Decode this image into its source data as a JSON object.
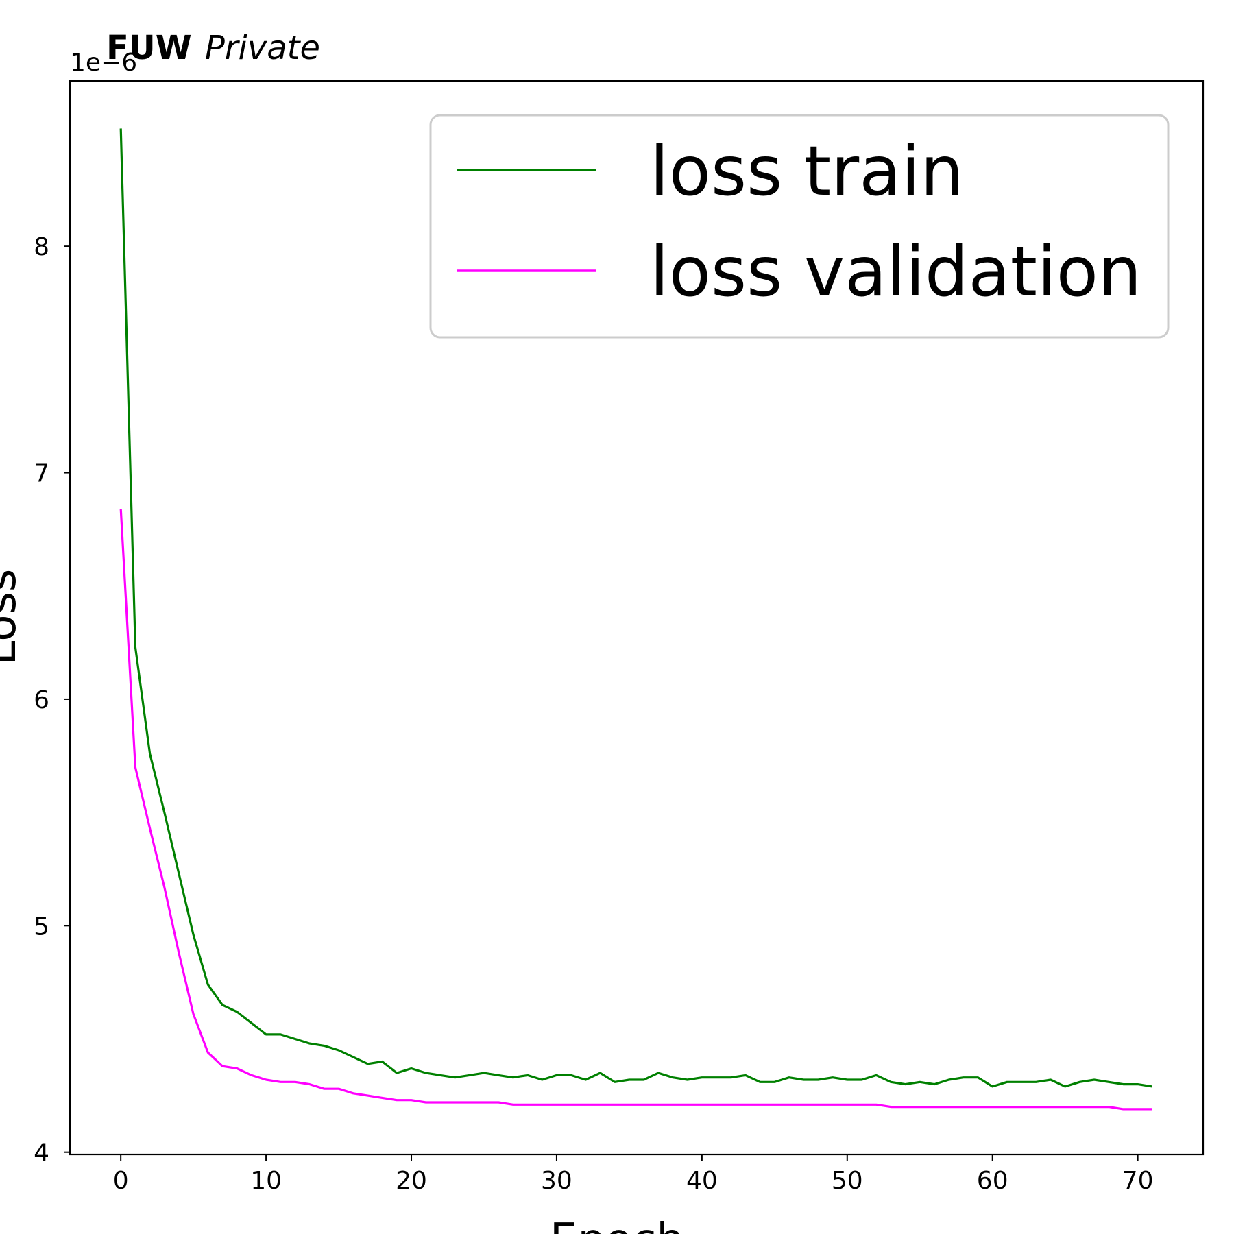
{
  "title": {
    "bold": "FUW",
    "italic": "Private"
  },
  "chart_data": {
    "type": "line",
    "xlabel": "Epoch",
    "ylabel": "Loss",
    "y_offset_text": "1e−6",
    "xlim": [
      -3.5,
      74.5
    ],
    "ylim": [
      3.99,
      8.73
    ],
    "xticks": [
      0,
      10,
      20,
      30,
      40,
      50,
      60,
      70
    ],
    "yticks": [
      4,
      5,
      6,
      7,
      8
    ],
    "legend_position": "upper right",
    "x": [
      0,
      1,
      2,
      3,
      4,
      5,
      6,
      7,
      8,
      9,
      10,
      11,
      12,
      13,
      14,
      15,
      16,
      17,
      18,
      19,
      20,
      21,
      22,
      23,
      24,
      25,
      26,
      27,
      28,
      29,
      30,
      31,
      32,
      33,
      34,
      35,
      36,
      37,
      38,
      39,
      40,
      41,
      42,
      43,
      44,
      45,
      46,
      47,
      48,
      49,
      50,
      51,
      52,
      53,
      54,
      55,
      56,
      57,
      58,
      59,
      60,
      61,
      62,
      63,
      64,
      65,
      66,
      67,
      68,
      69,
      70,
      71
    ],
    "series": [
      {
        "name": "loss train",
        "color": "#008000",
        "values": [
          8.52,
          6.23,
          5.76,
          5.5,
          5.23,
          4.96,
          4.74,
          4.65,
          4.62,
          4.57,
          4.52,
          4.52,
          4.5,
          4.48,
          4.47,
          4.45,
          4.42,
          4.39,
          4.4,
          4.35,
          4.37,
          4.35,
          4.34,
          4.33,
          4.34,
          4.35,
          4.34,
          4.33,
          4.34,
          4.32,
          4.34,
          4.34,
          4.32,
          4.35,
          4.31,
          4.32,
          4.32,
          4.35,
          4.33,
          4.32,
          4.33,
          4.33,
          4.33,
          4.34,
          4.31,
          4.31,
          4.33,
          4.32,
          4.32,
          4.33,
          4.32,
          4.32,
          4.34,
          4.31,
          4.3,
          4.31,
          4.3,
          4.32,
          4.33,
          4.33,
          4.29,
          4.31,
          4.31,
          4.31,
          4.32,
          4.29,
          4.31,
          4.32,
          4.31,
          4.3,
          4.3,
          4.29
        ]
      },
      {
        "name": "loss validation",
        "color": "#ff00ff",
        "values": [
          6.84,
          5.7,
          5.43,
          5.17,
          4.88,
          4.61,
          4.44,
          4.38,
          4.37,
          4.34,
          4.32,
          4.31,
          4.31,
          4.3,
          4.28,
          4.28,
          4.26,
          4.25,
          4.24,
          4.23,
          4.23,
          4.22,
          4.22,
          4.22,
          4.22,
          4.22,
          4.22,
          4.21,
          4.21,
          4.21,
          4.21,
          4.21,
          4.21,
          4.21,
          4.21,
          4.21,
          4.21,
          4.21,
          4.21,
          4.21,
          4.21,
          4.21,
          4.21,
          4.21,
          4.21,
          4.21,
          4.21,
          4.21,
          4.21,
          4.21,
          4.21,
          4.21,
          4.21,
          4.2,
          4.2,
          4.2,
          4.2,
          4.2,
          4.2,
          4.2,
          4.2,
          4.2,
          4.2,
          4.2,
          4.2,
          4.2,
          4.2,
          4.2,
          4.2,
          4.19,
          4.19,
          4.19
        ]
      }
    ]
  }
}
